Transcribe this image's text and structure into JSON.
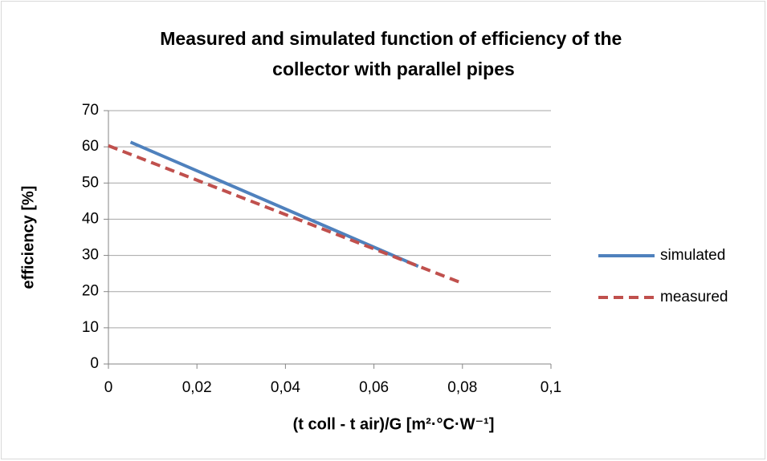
{
  "chart_data": {
    "type": "line",
    "title": "Measured and simulated function of efficiency of the collector with parallel pipes",
    "x_label": "(t coll - t air)/G [m²·°C·W⁻¹]",
    "y_label": "efficiency [%]",
    "series": [
      {
        "name": "simulated",
        "color": "#4f81bd",
        "dashed": false,
        "x": [
          0.005,
          0.07
        ],
        "values": [
          61.3,
          27
        ]
      },
      {
        "name": "measured",
        "color": "#c0504d",
        "dashed": true,
        "x": [
          0,
          0.08
        ],
        "values": [
          60.3,
          22.3
        ]
      }
    ],
    "xlim": [
      0,
      0.1
    ],
    "xticks": [
      0,
      {
        "value": 0.02,
        "label": "0,02"
      },
      {
        "value": 0.04,
        "label": "0,04"
      },
      {
        "value": 0.06,
        "label": "0,06"
      },
      {
        "value": 0.08,
        "label": "0,08"
      },
      {
        "value": 0.1,
        "label": "0,1"
      }
    ],
    "ylim": [
      0,
      70
    ],
    "yticks": [
      0,
      10,
      20,
      30,
      40,
      50,
      60,
      70
    ],
    "grid": true,
    "legend": "right"
  }
}
